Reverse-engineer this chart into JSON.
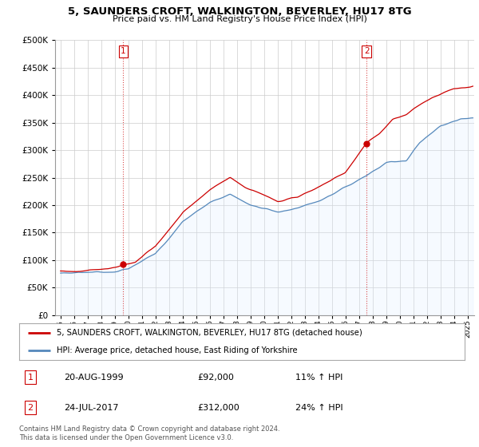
{
  "title": "5, SAUNDERS CROFT, WALKINGTON, BEVERLEY, HU17 8TG",
  "subtitle": "Price paid vs. HM Land Registry's House Price Index (HPI)",
  "ylim": [
    0,
    500000
  ],
  "yticks": [
    0,
    50000,
    100000,
    150000,
    200000,
    250000,
    300000,
    350000,
    400000,
    450000,
    500000
  ],
  "red_color": "#cc0000",
  "blue_color": "#5588bb",
  "blue_fill": "#ddeeff",
  "sale1_x": 1999.63,
  "sale1_y": 92000,
  "sale2_x": 2017.56,
  "sale2_y": 312000,
  "legend_line1": "5, SAUNDERS CROFT, WALKINGTON, BEVERLEY, HU17 8TG (detached house)",
  "legend_line2": "HPI: Average price, detached house, East Riding of Yorkshire",
  "table_row1": [
    "1",
    "20-AUG-1999",
    "£92,000",
    "11% ↑ HPI"
  ],
  "table_row2": [
    "2",
    "24-JUL-2017",
    "£312,000",
    "24% ↑ HPI"
  ],
  "footnote": "Contains HM Land Registry data © Crown copyright and database right 2024.\nThis data is licensed under the Open Government Licence v3.0.",
  "vline1_x": 1999.63,
  "vline2_x": 2017.56,
  "background_color": "#ffffff",
  "grid_color": "#cccccc",
  "xmin": 1994.6,
  "xmax": 2025.5
}
